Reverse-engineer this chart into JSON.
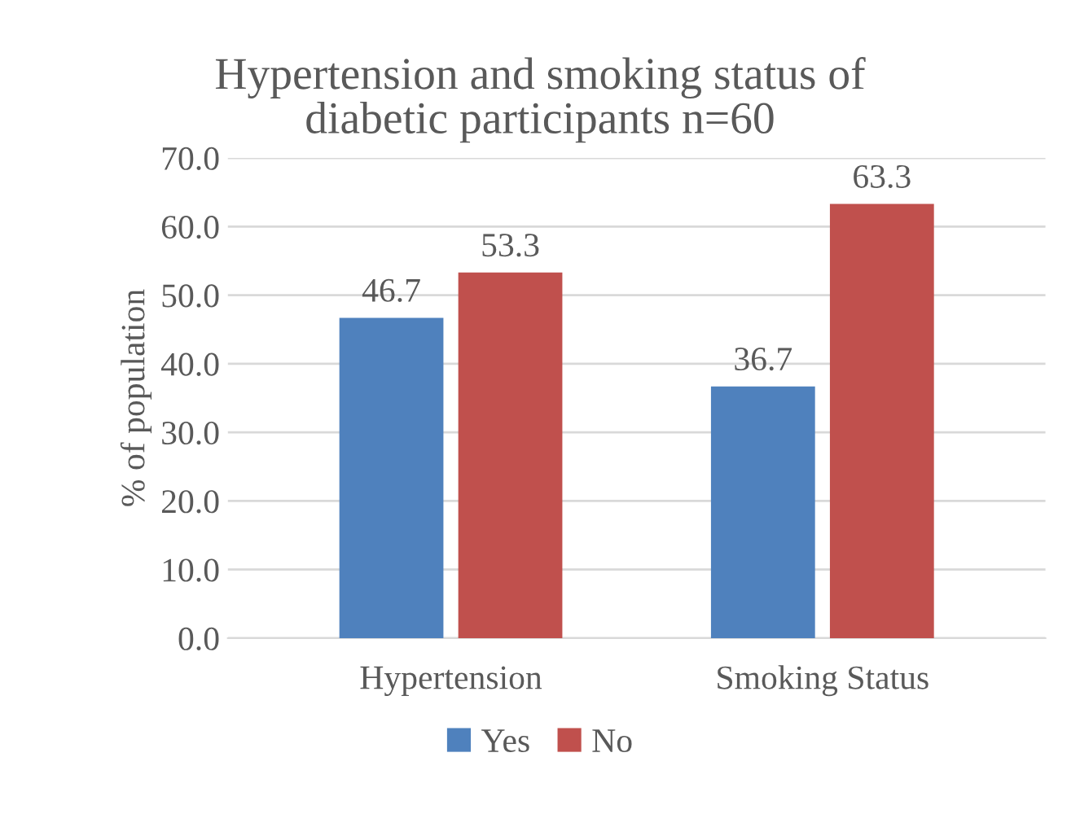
{
  "chart_data": {
    "type": "bar",
    "title": "Hypertension and smoking status of\ndiabetic participants n=60",
    "ylabel": "% of population",
    "categories": [
      "Hypertension",
      "Smoking Status"
    ],
    "series": [
      {
        "name": "Yes",
        "color": "#4f81bd",
        "values": [
          46.7,
          36.7
        ]
      },
      {
        "name": "No",
        "color": "#c0504d",
        "values": [
          53.3,
          63.3
        ]
      }
    ],
    "ylim": [
      0,
      70
    ],
    "yticks": [
      {
        "value": 0,
        "label": "0.0"
      },
      {
        "value": 10,
        "label": "10.0"
      },
      {
        "value": 20,
        "label": "20.0"
      },
      {
        "value": 30,
        "label": "30.0"
      },
      {
        "value": 40,
        "label": "40.0"
      },
      {
        "value": 50,
        "label": "50.0"
      },
      {
        "value": 60,
        "label": "60.0"
      },
      {
        "value": 70,
        "label": "70.0"
      }
    ],
    "grid": "y",
    "legend": "bottom",
    "data_labels": true
  }
}
